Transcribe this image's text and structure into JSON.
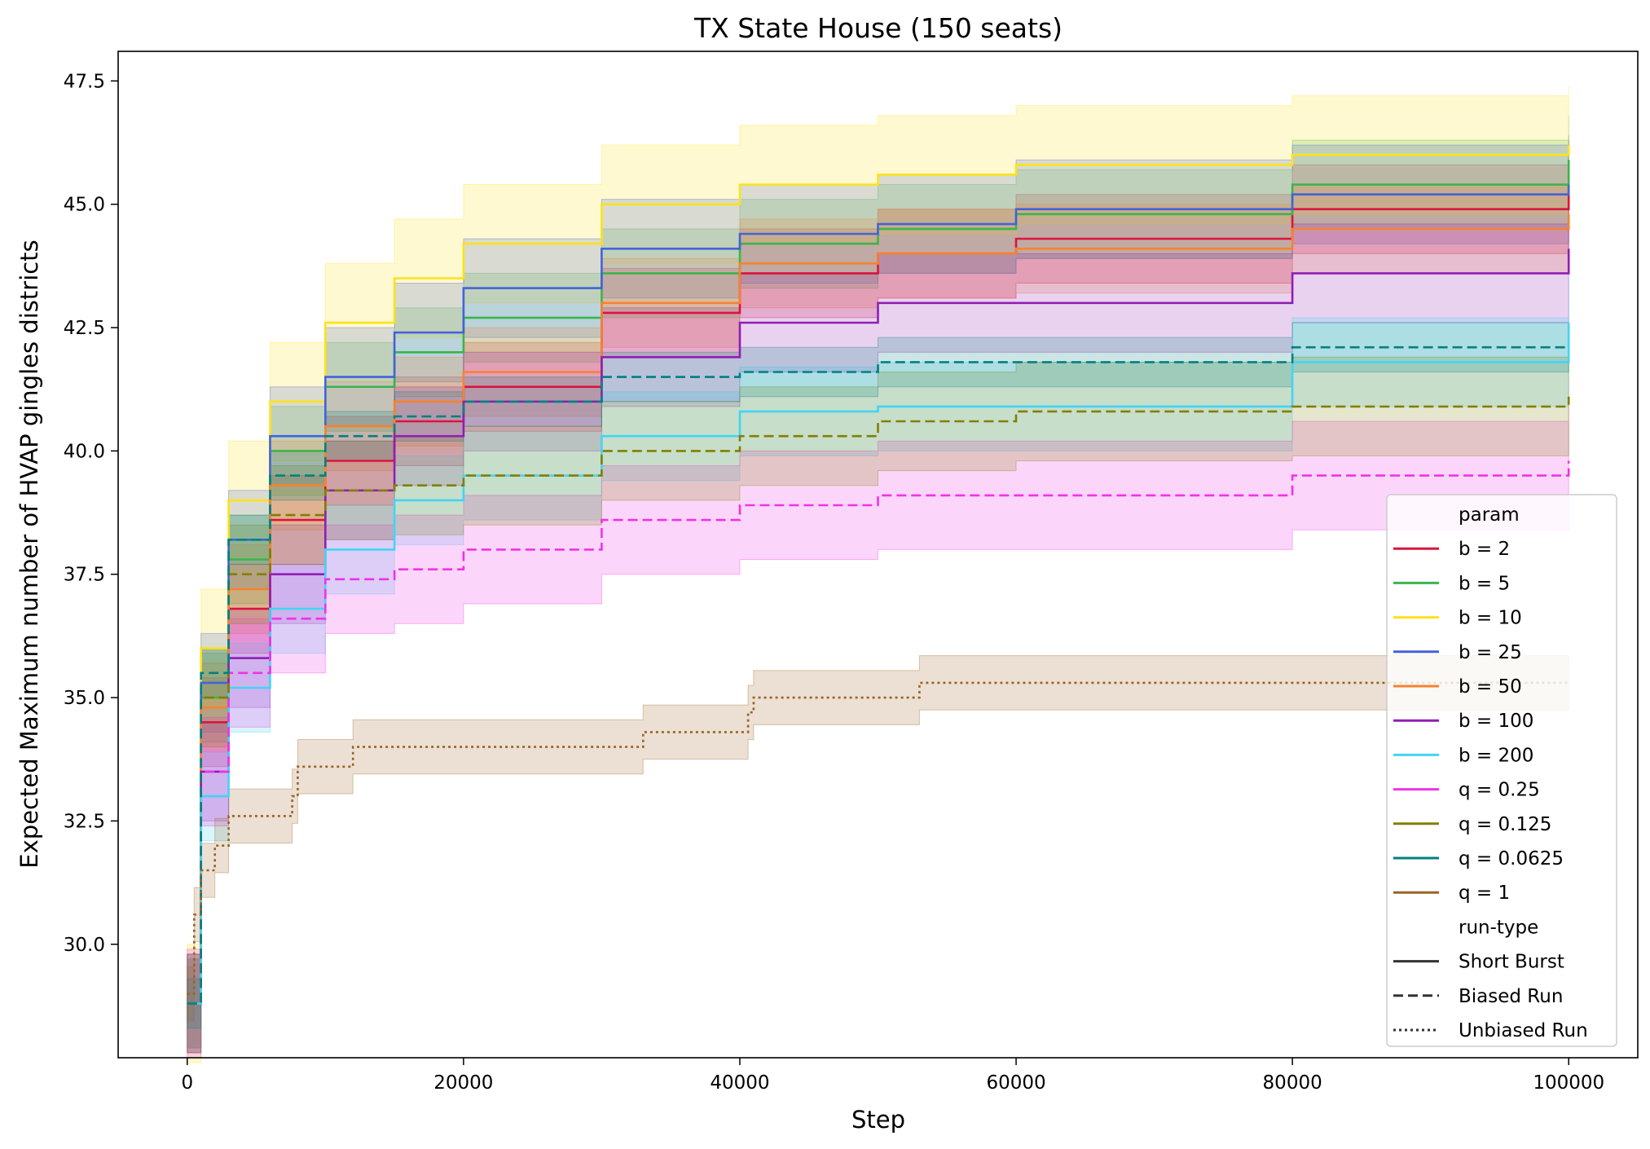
{
  "chart_data": {
    "type": "line",
    "title": "TX State House (150 seats)",
    "xlabel": "Step",
    "ylabel": "Expected Maximum number of HVAP gingles districts",
    "xlim": [
      -5000,
      105000
    ],
    "ylim": [
      27.7,
      48.1
    ],
    "xticks": [
      0,
      20000,
      40000,
      60000,
      80000,
      100000
    ],
    "yticks": [
      30.0,
      32.5,
      35.0,
      37.5,
      40.0,
      42.5,
      45.0,
      47.5
    ],
    "grid": false,
    "legend_position": "lower-right",
    "legend": {
      "param_title": "param",
      "runtype_title": "run-type",
      "runtypes": [
        {
          "label": "Short Burst",
          "dash": "solid"
        },
        {
          "label": "Biased Run",
          "dash": "dashed"
        },
        {
          "label": "Unbiased Run",
          "dash": "dotted"
        }
      ]
    },
    "series": [
      {
        "name": "b = 2",
        "color": "#dc143c",
        "dash": "solid",
        "band": 0.9,
        "x": [
          0,
          1000,
          3000,
          6000,
          10000,
          15000,
          20000,
          30000,
          40000,
          50000,
          60000,
          80000,
          100000
        ],
        "y": [
          28.8,
          34.5,
          36.8,
          38.6,
          39.8,
          40.6,
          41.3,
          42.8,
          43.6,
          44.0,
          44.3,
          44.9,
          45.4
        ]
      },
      {
        "name": "b = 5",
        "color": "#3cb44b",
        "dash": "solid",
        "band": 0.9,
        "x": [
          0,
          1000,
          3000,
          6000,
          10000,
          15000,
          20000,
          30000,
          40000,
          50000,
          60000,
          80000,
          100000
        ],
        "y": [
          28.8,
          35.0,
          37.8,
          40.0,
          41.3,
          42.0,
          42.7,
          43.6,
          44.2,
          44.5,
          44.8,
          45.4,
          45.9
        ]
      },
      {
        "name": "b = 10",
        "color": "#ffe119",
        "dash": "solid",
        "band": 1.2,
        "x": [
          0,
          1000,
          3000,
          6000,
          10000,
          15000,
          20000,
          30000,
          40000,
          50000,
          60000,
          80000,
          100000
        ],
        "y": [
          28.8,
          36.0,
          39.0,
          41.0,
          42.6,
          43.5,
          44.2,
          45.0,
          45.4,
          45.6,
          45.8,
          46.0,
          46.2
        ]
      },
      {
        "name": "b = 25",
        "color": "#4363d8",
        "dash": "solid",
        "band": 1.0,
        "x": [
          0,
          1000,
          3000,
          6000,
          10000,
          15000,
          20000,
          30000,
          40000,
          50000,
          60000,
          80000,
          100000
        ],
        "y": [
          28.8,
          35.3,
          38.2,
          40.3,
          41.5,
          42.4,
          43.3,
          44.1,
          44.4,
          44.6,
          44.9,
          45.2,
          45.4
        ]
      },
      {
        "name": "b = 50",
        "color": "#f58231",
        "dash": "solid",
        "band": 0.9,
        "x": [
          0,
          1000,
          3000,
          6000,
          10000,
          15000,
          20000,
          30000,
          40000,
          50000,
          60000,
          80000,
          100000
        ],
        "y": [
          28.8,
          34.8,
          37.2,
          39.3,
          40.5,
          41.0,
          41.6,
          43.0,
          43.8,
          44.0,
          44.1,
          44.5,
          44.8
        ]
      },
      {
        "name": "b = 100",
        "color": "#911eb4",
        "dash": "solid",
        "band": 1.0,
        "x": [
          0,
          1000,
          3000,
          6000,
          10000,
          15000,
          20000,
          30000,
          40000,
          50000,
          60000,
          80000,
          100000
        ],
        "y": [
          28.8,
          33.5,
          35.8,
          37.5,
          39.2,
          40.3,
          41.0,
          41.9,
          42.6,
          43.0,
          43.0,
          43.6,
          44.1
        ]
      },
      {
        "name": "b = 200",
        "color": "#42d4f4",
        "dash": "solid",
        "band": 0.9,
        "x": [
          0,
          1000,
          3000,
          6000,
          10000,
          15000,
          20000,
          30000,
          40000,
          50000,
          60000,
          80000,
          100000
        ],
        "y": [
          28.8,
          33.0,
          35.2,
          36.8,
          38.0,
          39.0,
          39.5,
          40.3,
          40.8,
          40.9,
          40.9,
          41.8,
          42.6
        ]
      },
      {
        "name": "q = 0.25",
        "color": "#f032e6",
        "dash": "dashed",
        "band": 1.1,
        "x": [
          0,
          1000,
          3000,
          6000,
          10000,
          15000,
          20000,
          30000,
          40000,
          50000,
          60000,
          80000,
          100000
        ],
        "y": [
          28.8,
          33.5,
          35.5,
          36.6,
          37.4,
          37.6,
          38.0,
          38.6,
          38.9,
          39.1,
          39.1,
          39.5,
          39.8
        ]
      },
      {
        "name": "q = 0.125",
        "color": "#808000",
        "dash": "dashed",
        "band": 1.0,
        "x": [
          0,
          1000,
          3000,
          6000,
          10000,
          15000,
          20000,
          30000,
          40000,
          50000,
          60000,
          80000,
          100000
        ],
        "y": [
          28.8,
          35.0,
          37.5,
          38.7,
          39.2,
          39.3,
          39.5,
          40.0,
          40.3,
          40.6,
          40.8,
          40.9,
          41.1
        ]
      },
      {
        "name": "q = 0.0625",
        "color": "#008080",
        "dash": "dashed",
        "band": 0.5,
        "x": [
          0,
          1000,
          3000,
          6000,
          10000,
          15000,
          20000,
          30000,
          40000,
          50000,
          60000,
          80000,
          100000
        ],
        "y": [
          28.8,
          35.5,
          38.2,
          39.5,
          40.3,
          40.7,
          41.0,
          41.5,
          41.6,
          41.8,
          41.8,
          42.1,
          42.1
        ]
      },
      {
        "name": "q = 1",
        "color": "#9a6324",
        "dash": "dotted",
        "band": 0.55,
        "x": [
          0,
          500,
          1000,
          2000,
          3000,
          7600,
          8000,
          12000,
          33000,
          40000,
          40600,
          41000,
          45000,
          53000,
          100000
        ],
        "y": [
          29.0,
          30.6,
          31.5,
          32.0,
          32.6,
          33.0,
          33.6,
          34.0,
          34.3,
          34.3,
          34.7,
          35.0,
          35.0,
          35.3,
          35.3
        ]
      }
    ]
  }
}
